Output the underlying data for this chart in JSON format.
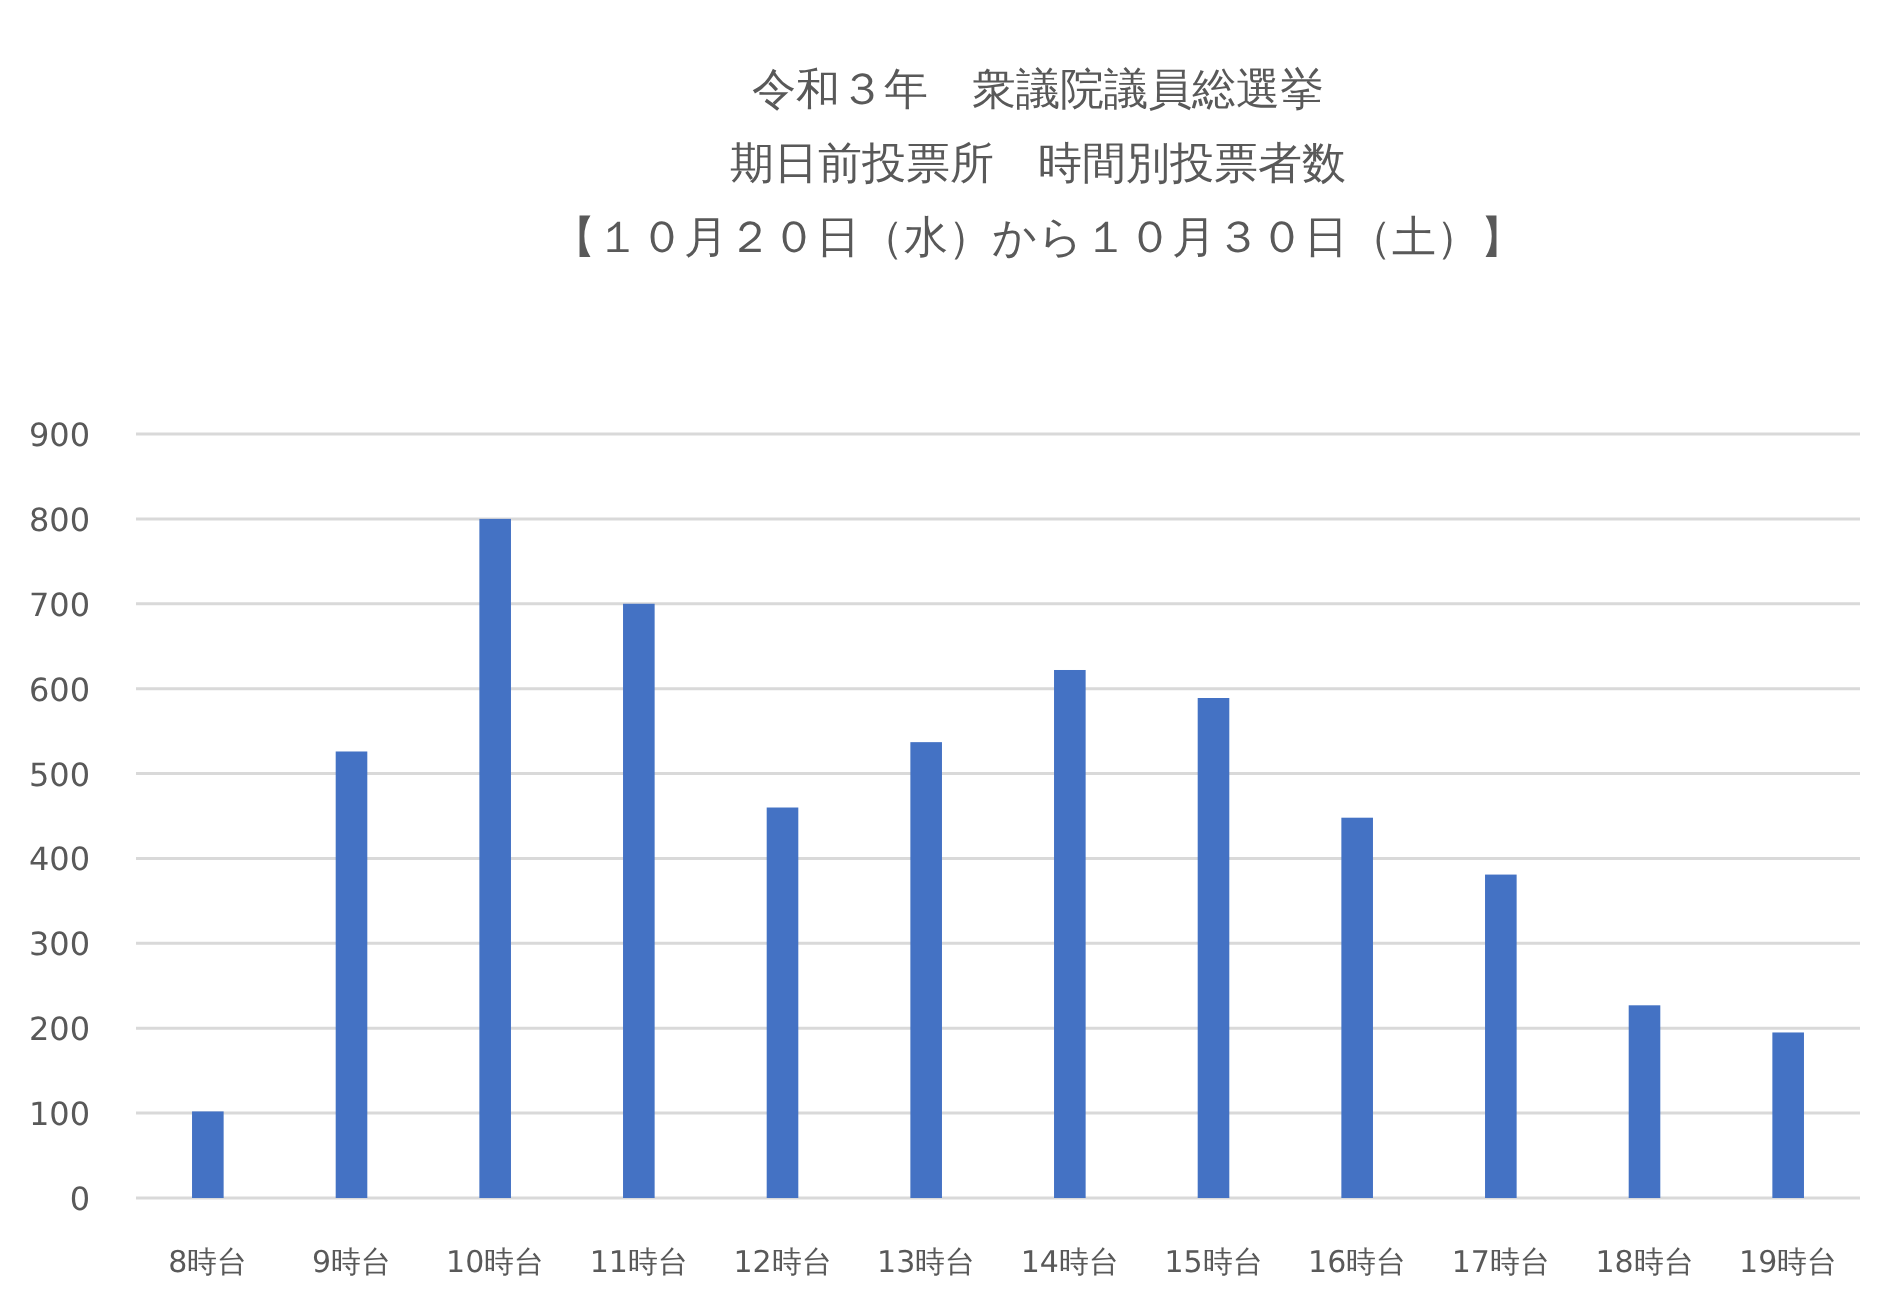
{
  "chart_data": {
    "type": "bar",
    "title": "令和３年　衆議院議員総選挙",
    "subtitle": "期日前投票所　時間別投票者数",
    "annotations": [
      "【１０月２０日（水）から１０月３０日（土）】"
    ],
    "categories": [
      "8時台",
      "9時台",
      "10時台",
      "11時台",
      "12時台",
      "13時台",
      "14時台",
      "15時台",
      "16時台",
      "17時台",
      "18時台",
      "19時台"
    ],
    "values": [
      102,
      526,
      800,
      700,
      460,
      537,
      622,
      589,
      448,
      381,
      227,
      195
    ],
    "color": "#4472c4",
    "ylim": [
      0,
      900
    ],
    "yticks": [
      0,
      100,
      200,
      300,
      400,
      500,
      600,
      700,
      800,
      900
    ],
    "grid": "y"
  }
}
